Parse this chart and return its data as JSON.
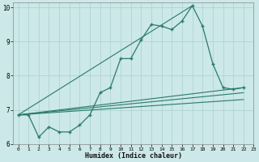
{
  "xlabel": "Humidex (Indice chaleur)",
  "bg_color": "#cce8e8",
  "line_color": "#2a7a6a",
  "grid_color": "#aad0d0",
  "xlim": [
    -0.5,
    23
  ],
  "ylim": [
    6,
    10.15
  ],
  "yticks": [
    6,
    7,
    8,
    9,
    10
  ],
  "xticks": [
    0,
    1,
    2,
    3,
    4,
    5,
    6,
    7,
    8,
    9,
    10,
    11,
    12,
    13,
    14,
    15,
    16,
    17,
    18,
    19,
    20,
    21,
    22,
    23
  ],
  "main_line": {
    "x": [
      0,
      1,
      2,
      3,
      4,
      5,
      6,
      7,
      8,
      9,
      10,
      11,
      12,
      13,
      14,
      15,
      16,
      17,
      18,
      19,
      20,
      21,
      22
    ],
    "y": [
      6.85,
      6.85,
      6.2,
      6.5,
      6.35,
      6.35,
      6.55,
      6.85,
      7.5,
      7.65,
      8.5,
      8.5,
      9.05,
      9.5,
      9.45,
      9.35,
      9.6,
      10.05,
      9.45,
      8.35,
      7.65,
      7.6,
      7.65
    ]
  },
  "diag_lines": [
    {
      "x": [
        0,
        17
      ],
      "y": [
        6.85,
        10.05
      ]
    },
    {
      "x": [
        0,
        22
      ],
      "y": [
        6.85,
        7.65
      ]
    },
    {
      "x": [
        0,
        22
      ],
      "y": [
        6.85,
        7.5
      ]
    },
    {
      "x": [
        0,
        22
      ],
      "y": [
        6.85,
        7.3
      ]
    }
  ]
}
